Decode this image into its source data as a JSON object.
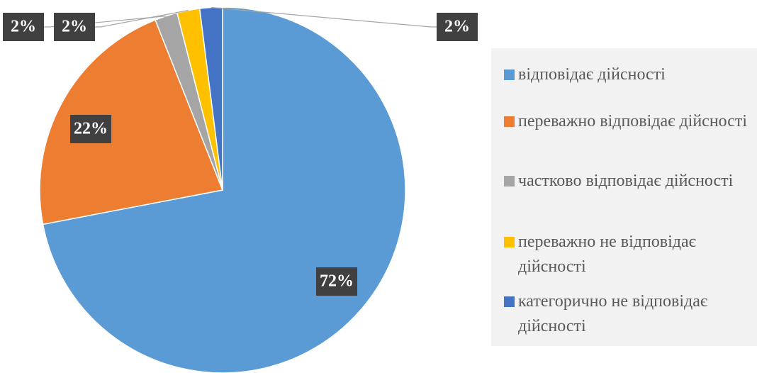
{
  "chart_data": {
    "type": "pie",
    "categories": [
      "відповідає дійсності",
      "переважно відповідає дійсності",
      "частково відповідає дійсності",
      "переважно не відповідає дійсності",
      "категорично не відповідає дійсності"
    ],
    "values": [
      72,
      22,
      2,
      2,
      2
    ],
    "value_labels": [
      "72%",
      "22%",
      "2%",
      "2%",
      "2%"
    ],
    "colors": [
      "#5b9bd5",
      "#ed7d31",
      "#a5a5a5",
      "#ffc000",
      "#4472c4"
    ],
    "legend": "right"
  }
}
